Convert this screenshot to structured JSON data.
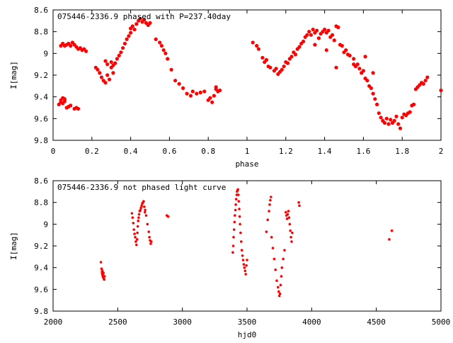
{
  "chart_data": [
    {
      "type": "scatter",
      "title": "075446-2336.9 phased with P=237.40day",
      "xlabel": "phase",
      "ylabel": "I[mag]",
      "xlim": [
        0,
        2
      ],
      "ylim": [
        9.8,
        8.6
      ],
      "y_inverted": true,
      "grid": false,
      "legend": "top-left",
      "color": "#ff0000",
      "x_ticks": [
        "0",
        "0.2",
        "0.4",
        "0.6",
        "0.8",
        "1",
        "1.2",
        "1.4",
        "1.6",
        "1.8",
        "2"
      ],
      "y_ticks": [
        "8.6",
        "8.8",
        "9",
        "9.2",
        "9.4",
        "9.6",
        "9.8"
      ],
      "points": [
        [
          0.03,
          9.47
        ],
        [
          0.04,
          9.45
        ],
        [
          0.04,
          9.43
        ],
        [
          0.05,
          9.41
        ],
        [
          0.05,
          9.46
        ],
        [
          0.06,
          9.44
        ],
        [
          0.06,
          9.42
        ],
        [
          0.07,
          9.5
        ],
        [
          0.08,
          9.49
        ],
        [
          0.09,
          9.48
        ],
        [
          0.11,
          9.51
        ],
        [
          0.12,
          9.5
        ],
        [
          0.13,
          9.51
        ],
        [
          0.04,
          8.93
        ],
        [
          0.05,
          8.91
        ],
        [
          0.06,
          8.93
        ],
        [
          0.07,
          8.92
        ],
        [
          0.08,
          8.91
        ],
        [
          0.09,
          8.93
        ],
        [
          0.1,
          8.9
        ],
        [
          0.11,
          8.92
        ],
        [
          0.12,
          8.94
        ],
        [
          0.13,
          8.96
        ],
        [
          0.14,
          8.95
        ],
        [
          0.15,
          8.97
        ],
        [
          0.16,
          8.96
        ],
        [
          0.17,
          8.98
        ],
        [
          0.22,
          9.13
        ],
        [
          0.23,
          9.15
        ],
        [
          0.24,
          9.18
        ],
        [
          0.25,
          9.22
        ],
        [
          0.26,
          9.25
        ],
        [
          0.27,
          9.27
        ],
        [
          0.27,
          9.07
        ],
        [
          0.28,
          9.2
        ],
        [
          0.28,
          9.1
        ],
        [
          0.29,
          9.24
        ],
        [
          0.3,
          9.08
        ],
        [
          0.3,
          9.13
        ],
        [
          0.31,
          9.18
        ],
        [
          0.31,
          9.11
        ],
        [
          0.32,
          9.09
        ],
        [
          0.33,
          9.05
        ],
        [
          0.34,
          9.02
        ],
        [
          0.35,
          8.99
        ],
        [
          0.36,
          8.95
        ],
        [
          0.37,
          8.91
        ],
        [
          0.38,
          8.87
        ],
        [
          0.39,
          8.84
        ],
        [
          0.4,
          8.81
        ],
        [
          0.4,
          8.77
        ],
        [
          0.41,
          8.75
        ],
        [
          0.42,
          8.78
        ],
        [
          0.43,
          8.73
        ],
        [
          0.44,
          8.7
        ],
        [
          0.45,
          8.68
        ],
        [
          0.46,
          8.71
        ],
        [
          0.47,
          8.69
        ],
        [
          0.48,
          8.72
        ],
        [
          0.49,
          8.74
        ],
        [
          0.5,
          8.72
        ],
        [
          0.53,
          8.87
        ],
        [
          0.55,
          8.9
        ],
        [
          0.56,
          8.93
        ],
        [
          0.57,
          8.97
        ],
        [
          0.58,
          9.0
        ],
        [
          0.59,
          9.05
        ],
        [
          0.61,
          9.15
        ],
        [
          0.63,
          9.25
        ],
        [
          0.65,
          9.28
        ],
        [
          0.67,
          9.32
        ],
        [
          0.69,
          9.37
        ],
        [
          0.71,
          9.39
        ],
        [
          0.72,
          9.35
        ],
        [
          0.74,
          9.37
        ],
        [
          0.76,
          9.36
        ],
        [
          0.78,
          9.35
        ],
        [
          0.8,
          9.43
        ],
        [
          0.81,
          9.41
        ],
        [
          0.82,
          9.45
        ],
        [
          0.83,
          9.39
        ],
        [
          0.84,
          9.33
        ],
        [
          0.85,
          9.35
        ],
        [
          0.86,
          9.34
        ],
        [
          0.84,
          9.31
        ],
        [
          1.03,
          8.9
        ],
        [
          1.05,
          8.93
        ],
        [
          1.06,
          8.96
        ],
        [
          1.08,
          9.04
        ],
        [
          1.09,
          9.08
        ],
        [
          1.1,
          9.06
        ],
        [
          1.11,
          9.12
        ],
        [
          1.12,
          9.13
        ],
        [
          1.14,
          9.16
        ],
        [
          1.15,
          9.14
        ],
        [
          1.16,
          9.19
        ],
        [
          1.17,
          9.17
        ],
        [
          1.18,
          9.15
        ],
        [
          1.19,
          9.12
        ],
        [
          1.2,
          9.08
        ],
        [
          1.21,
          9.09
        ],
        [
          1.22,
          9.05
        ],
        [
          1.23,
          9.03
        ],
        [
          1.24,
          8.99
        ],
        [
          1.25,
          9.01
        ],
        [
          1.26,
          8.96
        ],
        [
          1.27,
          8.94
        ],
        [
          1.28,
          8.91
        ],
        [
          1.29,
          8.89
        ],
        [
          1.3,
          8.85
        ],
        [
          1.31,
          8.83
        ],
        [
          1.32,
          8.8
        ],
        [
          1.33,
          8.83
        ],
        [
          1.34,
          8.78
        ],
        [
          1.35,
          8.81
        ],
        [
          1.36,
          8.79
        ],
        [
          1.37,
          8.86
        ],
        [
          1.38,
          8.82
        ],
        [
          1.39,
          8.8
        ],
        [
          1.4,
          8.78
        ],
        [
          1.41,
          8.81
        ],
        [
          1.42,
          8.79
        ],
        [
          1.43,
          8.85
        ],
        [
          1.44,
          8.83
        ],
        [
          1.45,
          8.88
        ],
        [
          1.46,
          8.75
        ],
        [
          1.47,
          8.76
        ],
        [
          1.48,
          8.92
        ],
        [
          1.49,
          8.93
        ],
        [
          1.5,
          8.99
        ],
        [
          1.51,
          8.97
        ],
        [
          1.52,
          9.01
        ],
        [
          1.53,
          9.02
        ],
        [
          1.55,
          9.05
        ],
        [
          1.56,
          9.12
        ],
        [
          1.57,
          9.1
        ],
        [
          1.58,
          9.14
        ],
        [
          1.59,
          9.18
        ],
        [
          1.6,
          9.16
        ],
        [
          1.61,
          9.23
        ],
        [
          1.62,
          9.25
        ],
        [
          1.63,
          9.3
        ],
        [
          1.64,
          9.32
        ],
        [
          1.65,
          9.37
        ],
        [
          1.66,
          9.42
        ],
        [
          1.67,
          9.47
        ],
        [
          1.68,
          9.55
        ],
        [
          1.69,
          9.59
        ],
        [
          1.7,
          9.62
        ],
        [
          1.71,
          9.64
        ],
        [
          1.72,
          9.6
        ],
        [
          1.73,
          9.65
        ],
        [
          1.74,
          9.61
        ],
        [
          1.75,
          9.64
        ],
        [
          1.76,
          9.62
        ],
        [
          1.77,
          9.58
        ],
        [
          1.78,
          9.65
        ],
        [
          1.79,
          9.69
        ],
        [
          1.8,
          9.59
        ],
        [
          1.81,
          9.56
        ],
        [
          1.82,
          9.57
        ],
        [
          1.83,
          9.55
        ],
        [
          1.84,
          9.54
        ],
        [
          1.85,
          9.48
        ],
        [
          1.86,
          9.47
        ],
        [
          1.87,
          9.33
        ],
        [
          1.88,
          9.31
        ],
        [
          1.89,
          9.29
        ],
        [
          1.9,
          9.27
        ],
        [
          1.91,
          9.28
        ],
        [
          1.92,
          9.25
        ],
        [
          1.93,
          9.22
        ],
        [
          2.0,
          9.34
        ],
        [
          1.61,
          9.03
        ],
        [
          1.46,
          9.13
        ],
        [
          1.65,
          9.18
        ],
        [
          1.35,
          8.92
        ],
        [
          1.41,
          8.97
        ],
        [
          1.55,
          9.1
        ]
      ]
    },
    {
      "type": "scatter",
      "title": "075446-2336.9 not phased light curve",
      "xlabel": "hjd0",
      "ylabel": "I[mag]",
      "xlim": [
        2000,
        5000
      ],
      "ylim": [
        9.8,
        8.6
      ],
      "y_inverted": true,
      "grid": false,
      "legend": "top-left",
      "color": "#ff0000",
      "x_ticks": [
        "2000",
        "2500",
        "3000",
        "3500",
        "4000",
        "4500",
        "5000"
      ],
      "y_ticks": [
        "8.6",
        "8.8",
        "9",
        "9.2",
        "9.4",
        "9.6",
        "9.8"
      ],
      "points": [
        [
          2370,
          9.35
        ],
        [
          2375,
          9.41
        ],
        [
          2378,
          9.44
        ],
        [
          2380,
          9.46
        ],
        [
          2382,
          9.43
        ],
        [
          2384,
          9.48
        ],
        [
          2386,
          9.47
        ],
        [
          2388,
          9.49
        ],
        [
          2390,
          9.45
        ],
        [
          2392,
          9.5
        ],
        [
          2395,
          9.51
        ],
        [
          2398,
          9.48
        ],
        [
          2610,
          8.9
        ],
        [
          2615,
          8.94
        ],
        [
          2620,
          8.99
        ],
        [
          2625,
          9.05
        ],
        [
          2630,
          9.09
        ],
        [
          2635,
          9.12
        ],
        [
          2640,
          9.16
        ],
        [
          2645,
          9.19
        ],
        [
          2650,
          9.14
        ],
        [
          2652,
          9.08
        ],
        [
          2655,
          9.02
        ],
        [
          2658,
          8.97
        ],
        [
          2662,
          8.94
        ],
        [
          2665,
          8.91
        ],
        [
          2670,
          8.88
        ],
        [
          2675,
          8.87
        ],
        [
          2680,
          8.85
        ],
        [
          2685,
          8.83
        ],
        [
          2690,
          8.81
        ],
        [
          2695,
          8.8
        ],
        [
          2700,
          8.79
        ],
        [
          2705,
          8.84
        ],
        [
          2710,
          8.89
        ],
        [
          2712,
          8.87
        ],
        [
          2720,
          8.92
        ],
        [
          2730,
          9.0
        ],
        [
          2740,
          9.07
        ],
        [
          2745,
          9.12
        ],
        [
          2750,
          9.15
        ],
        [
          2755,
          9.18
        ],
        [
          2760,
          9.16
        ],
        [
          2880,
          8.92
        ],
        [
          2890,
          8.93
        ],
        [
          3390,
          9.26
        ],
        [
          3393,
          9.2
        ],
        [
          3396,
          9.12
        ],
        [
          3400,
          9.05
        ],
        [
          3403,
          8.98
        ],
        [
          3406,
          8.92
        ],
        [
          3410,
          8.87
        ],
        [
          3413,
          8.82
        ],
        [
          3416,
          8.77
        ],
        [
          3420,
          8.73
        ],
        [
          3423,
          8.7
        ],
        [
          3426,
          8.69
        ],
        [
          3430,
          8.68
        ],
        [
          3433,
          8.73
        ],
        [
          3436,
          8.79
        ],
        [
          3440,
          8.86
        ],
        [
          3443,
          8.93
        ],
        [
          3446,
          9.0
        ],
        [
          3450,
          9.08
        ],
        [
          3455,
          9.16
        ],
        [
          3460,
          9.24
        ],
        [
          3465,
          9.29
        ],
        [
          3470,
          9.33
        ],
        [
          3475,
          9.37
        ],
        [
          3480,
          9.4
        ],
        [
          3485,
          9.43
        ],
        [
          3490,
          9.46
        ],
        [
          3495,
          9.38
        ],
        [
          3500,
          9.33
        ],
        [
          3650,
          9.07
        ],
        [
          3660,
          8.96
        ],
        [
          3670,
          8.88
        ],
        [
          3675,
          8.82
        ],
        [
          3680,
          8.78
        ],
        [
          3685,
          8.75
        ],
        [
          3690,
          9.12
        ],
        [
          3700,
          9.22
        ],
        [
          3710,
          9.32
        ],
        [
          3720,
          9.42
        ],
        [
          3730,
          9.52
        ],
        [
          3740,
          9.58
        ],
        [
          3745,
          9.62
        ],
        [
          3750,
          9.66
        ],
        [
          3755,
          9.64
        ],
        [
          3760,
          9.56
        ],
        [
          3765,
          9.48
        ],
        [
          3770,
          9.4
        ],
        [
          3780,
          9.32
        ],
        [
          3790,
          9.24
        ],
        [
          3800,
          8.89
        ],
        [
          3805,
          8.92
        ],
        [
          3810,
          8.95
        ],
        [
          3815,
          8.91
        ],
        [
          3820,
          8.88
        ],
        [
          3825,
          8.94
        ],
        [
          3830,
          9.0
        ],
        [
          3835,
          9.06
        ],
        [
          3840,
          9.12
        ],
        [
          3845,
          9.16
        ],
        [
          3850,
          9.08
        ],
        [
          3900,
          8.8
        ],
        [
          3905,
          8.83
        ],
        [
          4600,
          9.14
        ],
        [
          4620,
          9.06
        ]
      ]
    }
  ]
}
